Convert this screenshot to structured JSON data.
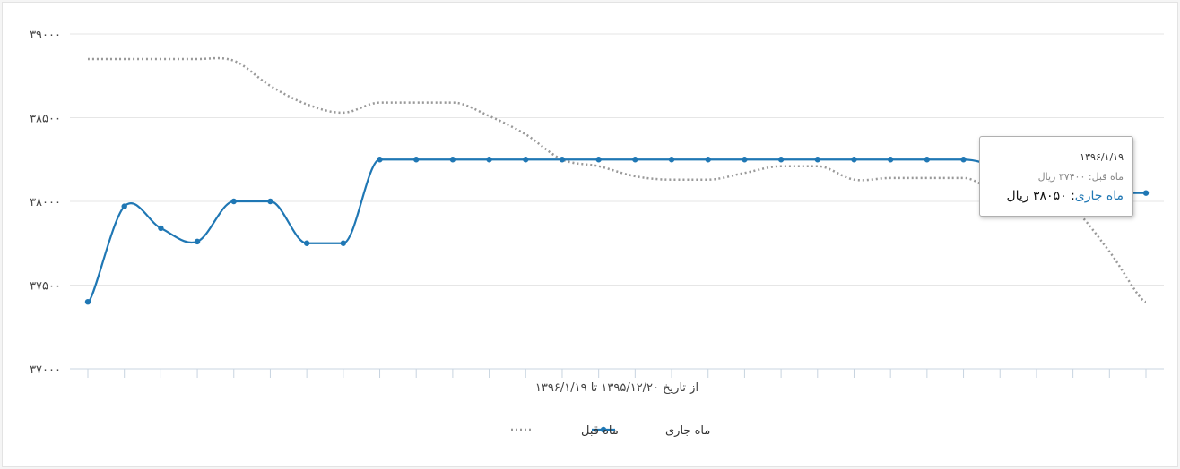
{
  "chart_data": {
    "type": "line",
    "x_count": 30,
    "xlabel": "از تاریخ ۱۳۹۵/۱۲/۲۰ تا ۱۳۹۶/۱/۱۹",
    "ylim": [
      37000,
      39000
    ],
    "yticks": [
      37000,
      37500,
      38000,
      38500,
      39000
    ],
    "ytick_labels": [
      "۳۷۰۰۰",
      "۳۷۵۰۰",
      "۳۸۰۰۰",
      "۳۸۵۰۰",
      "۳۹۰۰۰"
    ],
    "grid": true,
    "legend_position": "bottom",
    "series": [
      {
        "name": "ماه جاری",
        "color": "#1f77b4",
        "style": "solid-markers",
        "values": [
          37400,
          37970,
          37840,
          37760,
          38000,
          38000,
          37750,
          37750,
          38250,
          38250,
          38250,
          38250,
          38250,
          38250,
          38250,
          38250,
          38250,
          38250,
          38250,
          38250,
          38250,
          38250,
          38250,
          38250,
          38250,
          38190,
          38050,
          38050,
          38050,
          38050
        ]
      },
      {
        "name": "ماه قبل",
        "color": "#999999",
        "style": "dotted",
        "values": [
          38850,
          38850,
          38850,
          38850,
          38840,
          38690,
          38580,
          38530,
          38590,
          38590,
          38590,
          38510,
          38400,
          38250,
          38210,
          38150,
          38130,
          38130,
          38170,
          38210,
          38210,
          38130,
          38140,
          38140,
          38140,
          38060,
          38060,
          37960,
          37700,
          37400
        ]
      }
    ],
    "tooltip": {
      "date": "۱۳۹۶/۱/۱۹",
      "previous": "ماه قبل: ۳۷۴۰۰ ریال",
      "current_label": "ماه جاری",
      "current_value": ": ۳۸۰۵۰ ریال"
    }
  }
}
